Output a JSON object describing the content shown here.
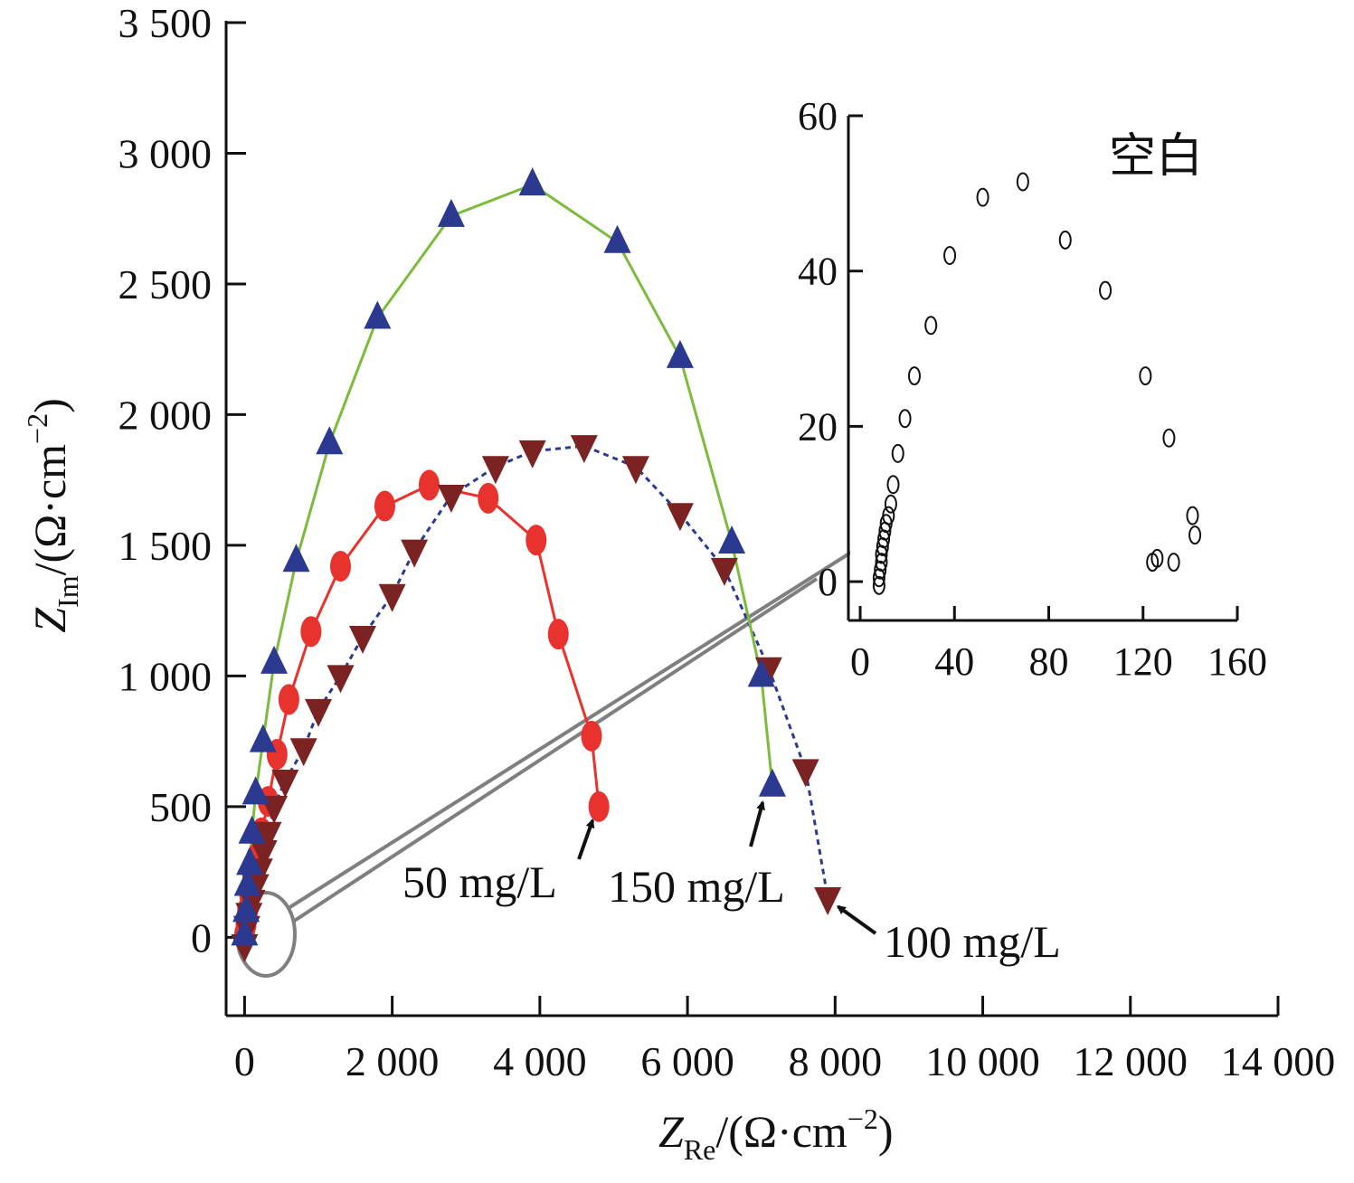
{
  "chart_data": [
    {
      "type": "line",
      "xlabel": {
        "main": "Z",
        "sub": "Re",
        "unit": "/(Ω·cm",
        "exp": "−2",
        "close": ")"
      },
      "ylabel": {
        "main": "Z",
        "sub": "Im",
        "unit": "/(Ω·cm",
        "exp": "−2",
        "close": ")"
      },
      "xlim": [
        -250,
        14000
      ],
      "ylim": [
        -300,
        3500
      ],
      "x_ticks": [
        0,
        2000,
        4000,
        6000,
        8000,
        10000,
        12000,
        14000
      ],
      "x_tick_labels": [
        "0",
        "2 000",
        "4 000",
        "6 000",
        "8 000",
        "10 000",
        "12 000",
        "14 000"
      ],
      "y_ticks": [
        0,
        500,
        1000,
        1500,
        2000,
        2500,
        3000,
        3500
      ],
      "y_tick_labels": [
        "0",
        "500",
        "1 000",
        "1 500",
        "2 000",
        "2 500",
        "3 000",
        "3 500"
      ],
      "grid": false,
      "series": [
        {
          "name": "50 mg/L",
          "marker": "circle",
          "color": "#e8322d",
          "line_color": "#e8322d",
          "dash": "solid",
          "x": [
            0,
            20,
            40,
            70,
            110,
            160,
            230,
            320,
            440,
            600,
            900,
            1300,
            1900,
            2500,
            3300,
            3950,
            4250,
            4700,
            4800
          ],
          "y": [
            10,
            50,
            100,
            160,
            230,
            300,
            400,
            520,
            700,
            910,
            1170,
            1420,
            1650,
            1730,
            1680,
            1520,
            1160,
            770,
            500
          ]
        },
        {
          "name": "100 mg/L",
          "marker": "triangle-down",
          "color": "#7b2322",
          "line_color": "#2b3990",
          "dash": "6,5",
          "x": [
            0,
            30,
            60,
            100,
            150,
            200,
            260,
            320,
            400,
            550,
            800,
            1000,
            1300,
            1600,
            2000,
            2300,
            2800,
            3400,
            3900,
            4600,
            5300,
            5900,
            6500,
            7100,
            7600,
            7900
          ],
          "y": [
            -30,
            40,
            90,
            140,
            200,
            260,
            330,
            400,
            500,
            600,
            720,
            870,
            1000,
            1150,
            1310,
            1480,
            1690,
            1800,
            1860,
            1880,
            1800,
            1620,
            1410,
            1030,
            640,
            150
          ]
        },
        {
          "name": "150 mg/L",
          "marker": "triangle-up",
          "color": "#2b3990",
          "line_color": "#7dbb3c",
          "dash": "solid",
          "x": [
            0,
            20,
            40,
            70,
            100,
            150,
            250,
            400,
            700,
            1150,
            1800,
            2800,
            3900,
            5050,
            5900,
            6600,
            7000,
            7150
          ],
          "y": [
            10,
            100,
            200,
            280,
            400,
            550,
            750,
            1050,
            1440,
            1890,
            2370,
            2760,
            2880,
            2660,
            2220,
            1510,
            1000,
            580
          ]
        }
      ],
      "annotations": [
        {
          "text": "50 mg/L",
          "arrow_to": [
            4780,
            500
          ]
        },
        {
          "text": "150 mg/L",
          "arrow_to": [
            7070,
            570
          ]
        },
        {
          "text": "100 mg/L",
          "arrow_to": [
            7880,
            150
          ]
        }
      ]
    },
    {
      "type": "scatter",
      "inset": true,
      "xlim": [
        -5,
        160
      ],
      "ylim": [
        -5,
        60
      ],
      "x_ticks": [
        0,
        40,
        80,
        120,
        160
      ],
      "x_tick_labels": [
        "0",
        "40",
        "80",
        "120",
        "160"
      ],
      "y_ticks": [
        0,
        20,
        40,
        60
      ],
      "y_tick_labels": [
        "0",
        "20",
        "40",
        "60"
      ],
      "series": [
        {
          "name": "空白",
          "marker": "open-circle",
          "color": "#111111",
          "x": [
            8,
            8,
            8.5,
            9,
            9,
            9.5,
            10,
            10.5,
            11,
            12,
            13,
            14,
            16,
            19,
            23,
            30,
            38,
            52,
            69,
            87,
            104,
            121,
            131,
            141,
            142,
            126,
            124,
            133
          ],
          "y": [
            -0.5,
            0.5,
            1.5,
            2.5,
            3.5,
            4.5,
            5.5,
            6.5,
            7.5,
            8.5,
            10,
            12.5,
            16.5,
            21,
            26.5,
            33,
            42,
            49.5,
            51.5,
            44,
            37.5,
            26.5,
            18.5,
            8.5,
            6,
            3,
            2.5,
            2.5
          ]
        }
      ]
    }
  ]
}
